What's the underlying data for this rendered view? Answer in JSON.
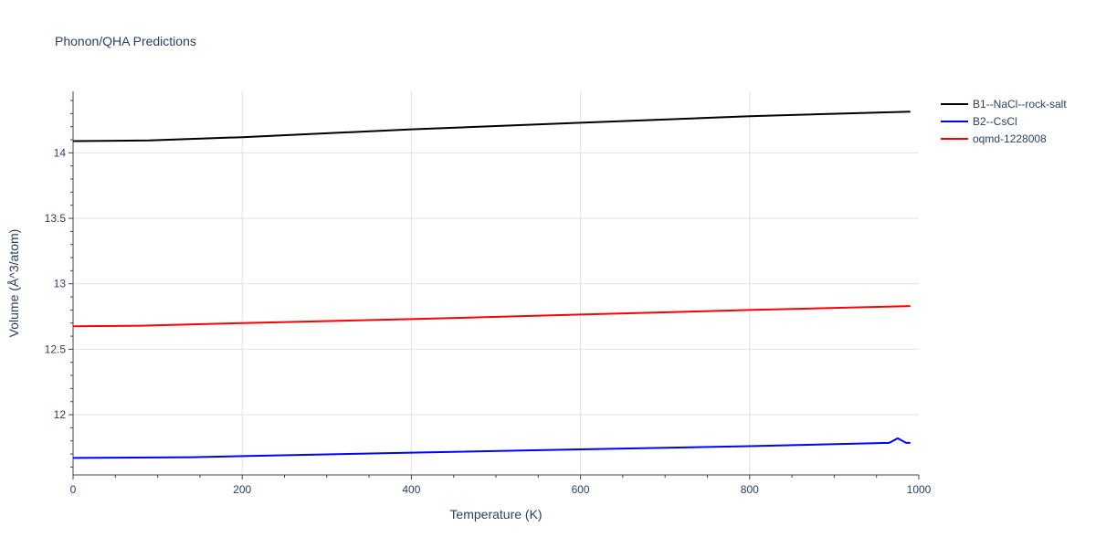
{
  "chart_data": {
    "type": "line",
    "title": "Phonon/QHA Predictions",
    "xlabel": "Temperature (K)",
    "ylabel": "Volume (Å^3/atom)",
    "xlim": [
      0,
      1000
    ],
    "ylim": [
      11.54,
      14.47
    ],
    "x_ticks": [
      0,
      200,
      400,
      600,
      800,
      1000
    ],
    "x_tick_labels": [
      "0",
      "200",
      "400",
      "600",
      "800",
      "1000"
    ],
    "y_ticks": [
      12,
      12.5,
      13,
      13.5,
      14
    ],
    "y_tick_labels": [
      "12",
      "12.5",
      "13",
      "13.5",
      "14"
    ],
    "grid": true,
    "legend_position": "top-right",
    "series": [
      {
        "name": "B1--NaCl--rock-salt",
        "color": "#000000",
        "x": [
          0,
          90,
          200,
          400,
          600,
          800,
          990
        ],
        "y": [
          14.09,
          14.095,
          14.12,
          14.18,
          14.23,
          14.28,
          14.315
        ]
      },
      {
        "name": "B2--CsCl",
        "color": "#0000ff",
        "x": [
          0,
          140,
          400,
          600,
          800,
          965,
          975,
          985,
          990
        ],
        "y": [
          11.67,
          11.675,
          11.71,
          11.735,
          11.76,
          11.785,
          11.82,
          11.785,
          11.785
        ]
      },
      {
        "name": "oqmd-1228008",
        "color": "#ff0000",
        "x": [
          0,
          80,
          200,
          400,
          600,
          800,
          990
        ],
        "y": [
          12.675,
          12.68,
          12.7,
          12.73,
          12.765,
          12.8,
          12.83
        ]
      }
    ]
  }
}
